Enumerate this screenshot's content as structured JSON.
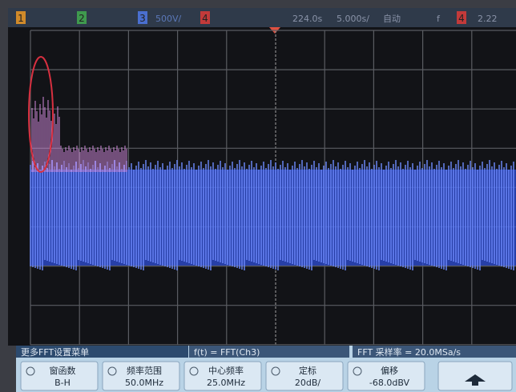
{
  "top_bar": {
    "ch1": "1",
    "ch2": "2",
    "ch3": "3",
    "scale": "500V/",
    "ch4": "4",
    "delay": "224.0s",
    "timebase": "5.000s/",
    "mode": "自动",
    "trigger": "f",
    "trigger_channel": "4",
    "level": "2.22"
  },
  "menu": {
    "title": "更多FFT设置菜单",
    "function": "f(t) = FFT(Ch3)",
    "sample_rate": "FFT 采样率 = 20.0MSa/s",
    "buttons": [
      {
        "label": "窗函数",
        "value": "B-H"
      },
      {
        "label": "频率范围",
        "value": "50.0MHz"
      },
      {
        "label": "中心频率",
        "value": "25.0MHz"
      },
      {
        "label": "定标",
        "value": "20dB/"
      },
      {
        "label": "偏移",
        "value": "-68.0dBV"
      }
    ]
  }
}
